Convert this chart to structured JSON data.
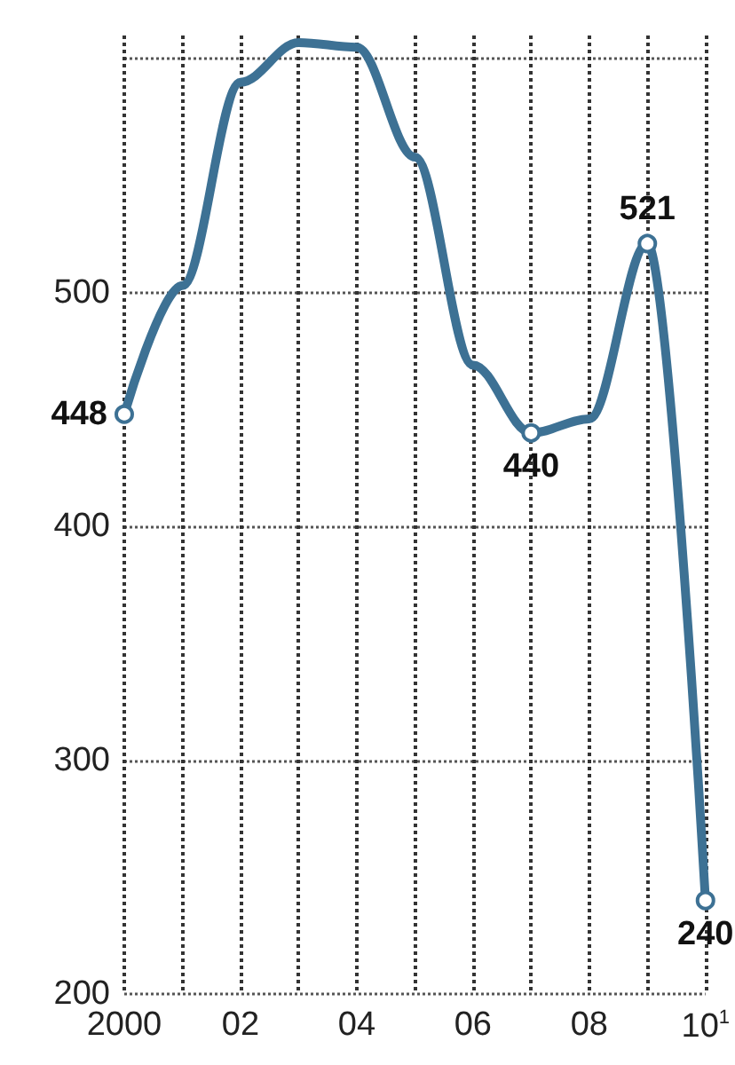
{
  "chart_data": {
    "type": "line",
    "categories": [
      "2000",
      null,
      "02",
      null,
      "04",
      null,
      "06",
      null,
      "08",
      null,
      "10$^{1}$"
    ],
    "series": [
      {
        "color": "#3d7194",
        "values": [
          448,
          503,
          590,
          607,
          605,
          558,
          469,
          440,
          446,
          521,
          240
        ],
        "value_labels": [
          "448",
          null,
          null,
          null,
          null,
          null,
          null,
          "440",
          null,
          "521",
          "240"
        ]
      }
    ],
    "ylim": [
      200,
      610
    ],
    "yticks": [
      200,
      300,
      400,
      500,
      {
        "value": 600,
        "label": null
      }
    ],
    "grid": true
  }
}
